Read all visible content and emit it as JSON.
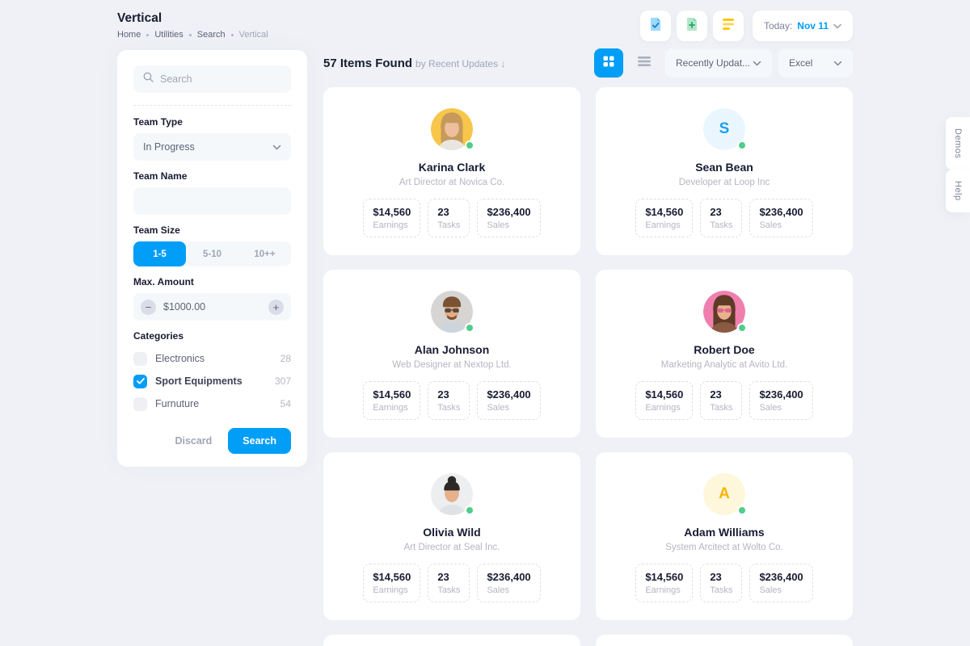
{
  "colors": {
    "accent": "#009ef7",
    "success": "#50cd89",
    "warning": "#ffc700",
    "page_bg": "#eff1f6"
  },
  "header": {
    "title": "Vertical",
    "breadcrumb": [
      "Home",
      "Utilities",
      "Search",
      "Vertical"
    ],
    "action_icons": [
      "file-check-icon",
      "file-plus-icon",
      "file-lines-icon"
    ],
    "today_label": "Today:",
    "today_value": "Nov 11"
  },
  "sidebar": {
    "search_placeholder": "Search",
    "team_type_label": "Team Type",
    "team_type_value": "In Progress",
    "team_name_label": "Team Name",
    "team_name_value": "",
    "team_size_label": "Team Size",
    "team_size_options": [
      "1-5",
      "5-10",
      "10++"
    ],
    "team_size_selected": "1-5",
    "max_amount_label": "Max. Amount",
    "max_amount_value": "$1000.00",
    "categories_label": "Categories",
    "categories": [
      {
        "label": "Electronics",
        "count": "28",
        "checked": false
      },
      {
        "label": "Sport Equipments",
        "count": "307",
        "checked": true
      },
      {
        "label": "Furnuture",
        "count": "54",
        "checked": false
      }
    ],
    "discard_label": "Discard",
    "search_label": "Search"
  },
  "toolbar": {
    "results_count": "57 Items Found",
    "results_sub": "by Recent Updates ↓",
    "sort_value": "Recently Updat...",
    "export_value": "Excel"
  },
  "grid": {
    "partial_cards": 2
  },
  "cards": [
    {
      "name": "Karina Clark",
      "role": "Art Director at Novica Co.",
      "online": true,
      "avatar": {
        "type": "photo",
        "bg": "#f7c64a",
        "hair": "#c79a5b",
        "skin": "#eebf9e",
        "shirt": "#e9e6e1",
        "style": "long"
      },
      "stats": [
        {
          "value": "$14,560",
          "label": "Earnings"
        },
        {
          "value": "23",
          "label": "Tasks"
        },
        {
          "value": "$236,400",
          "label": "Sales"
        }
      ]
    },
    {
      "name": "Sean Bean",
      "role": "Developer at Loop Inc",
      "online": true,
      "avatar": {
        "type": "initial",
        "initial": "S",
        "bg": "#eaf6fe",
        "fg": "#1e9ff2"
      },
      "stats": [
        {
          "value": "$14,560",
          "label": "Earnings"
        },
        {
          "value": "23",
          "label": "Tasks"
        },
        {
          "value": "$236,400",
          "label": "Sales"
        }
      ]
    },
    {
      "name": "Alan Johnson",
      "role": "Web Designer at Nextop Ltd.",
      "online": true,
      "avatar": {
        "type": "photo",
        "bg": "#d7d5d3",
        "hair": "#7a5334",
        "skin": "#e5ab81",
        "shirt": "#cdd5dc",
        "style": "short",
        "glasses": "#3a3a3a",
        "beard": true
      },
      "stats": [
        {
          "value": "$14,560",
          "label": "Earnings"
        },
        {
          "value": "23",
          "label": "Tasks"
        },
        {
          "value": "$236,400",
          "label": "Sales"
        }
      ]
    },
    {
      "name": "Robert Doe",
      "role": "Marketing Analytic at Avito Ltd.",
      "online": true,
      "avatar": {
        "type": "photo",
        "bg": "#f07fae",
        "hair": "#5d3b27",
        "skin": "#e8b28c",
        "shirt": "#8c5a42",
        "style": "long",
        "glasses": "#d9578f"
      },
      "stats": [
        {
          "value": "$14,560",
          "label": "Earnings"
        },
        {
          "value": "23",
          "label": "Tasks"
        },
        {
          "value": "$236,400",
          "label": "Sales"
        }
      ]
    },
    {
      "name": "Olivia Wild",
      "role": "Art Director at Seal Inc.",
      "online": true,
      "avatar": {
        "type": "photo",
        "bg": "#eceef0",
        "hair": "#2d2926",
        "skin": "#e7b18c",
        "shirt": "#dfe3e6",
        "style": "bun"
      },
      "stats": [
        {
          "value": "$14,560",
          "label": "Earnings"
        },
        {
          "value": "23",
          "label": "Tasks"
        },
        {
          "value": "$236,400",
          "label": "Sales"
        }
      ]
    },
    {
      "name": "Adam Williams",
      "role": "System Arcitect at Wolto Co.",
      "online": true,
      "avatar": {
        "type": "initial",
        "initial": "A",
        "bg": "#fef7dc",
        "fg": "#f5b600"
      },
      "stats": [
        {
          "value": "$14,560",
          "label": "Earnings"
        },
        {
          "value": "23",
          "label": "Tasks"
        },
        {
          "value": "$236,400",
          "label": "Sales"
        }
      ]
    }
  ],
  "side_tabs": [
    {
      "label": "Demos"
    },
    {
      "label": "Help"
    }
  ]
}
